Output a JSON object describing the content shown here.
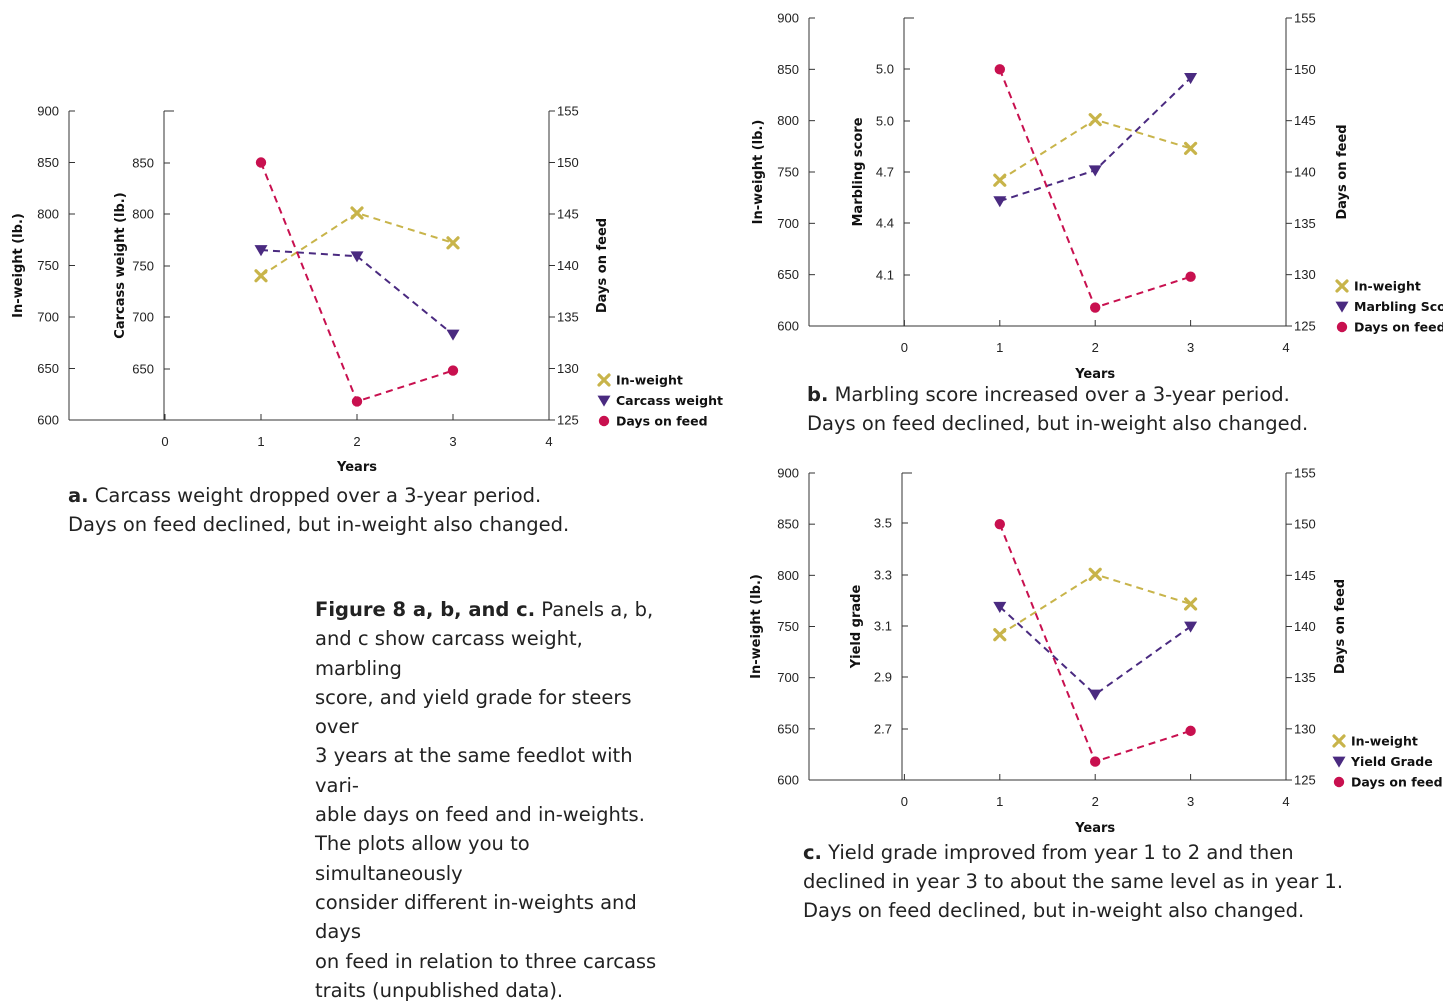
{
  "colors": {
    "inweight": "#c8b44a",
    "trait": "#4a2a80",
    "days": "#c8104f"
  },
  "figure_caption": {
    "heading": "Figure 8 a, b, and c.",
    "lines": [
      " Panels a, b,",
      "and c show carcass weight, marbling",
      "score, and yield grade for steers over",
      "3 years at the same feedlot with vari-",
      "able days on feed and in-weights.",
      "The plots allow you to simultaneously",
      "consider different in-weights and days",
      "on feed in relation to three carcass",
      "traits (unpublished data)."
    ]
  },
  "chart_data": [
    {
      "type": "line",
      "panel": "a",
      "caption_label": "a.",
      "caption_lines": [
        " Carcass weight dropped over a 3-year period.",
        "Days on feed declined, but in-weight also changed."
      ],
      "xlabel": "Years",
      "x_ticks": [
        "0",
        "1",
        "2",
        "3",
        "4"
      ],
      "x": [
        1,
        2,
        3
      ],
      "xlim": [
        -1,
        4
      ],
      "y_left": {
        "label": "In-weight (lb.)",
        "ticks": [
          "600",
          "650",
          "700",
          "750",
          "800",
          "850",
          "900"
        ],
        "lim": [
          600,
          900
        ]
      },
      "y_trait": {
        "label": "Carcass weight (lb.)",
        "ticks": [
          "650",
          "700",
          "750",
          "800",
          "850"
        ],
        "lim": [
          600,
          900
        ]
      },
      "y_right": {
        "label": "Days on feed",
        "ticks": [
          "125",
          "130",
          "135",
          "140",
          "145",
          "150",
          "155"
        ],
        "lim": [
          125,
          155
        ]
      },
      "series": [
        {
          "name": "In-weight",
          "axis": "left",
          "marker": "x",
          "values": [
            740,
            801,
            772
          ]
        },
        {
          "name": "Carcass weight",
          "axis": "trait",
          "marker": "triangle",
          "values": [
            765,
            759,
            683
          ]
        },
        {
          "name": "Days on feed",
          "axis": "right",
          "marker": "circle",
          "values": [
            150,
            126.8,
            129.8
          ]
        }
      ],
      "legend": "right"
    },
    {
      "type": "line",
      "panel": "b",
      "caption_label": "b.",
      "caption_lines": [
        " Marbling score increased over a 3-year period.",
        "Days on feed declined, but in-weight also changed."
      ],
      "xlabel": "Years",
      "x_ticks": [
        "0",
        "1",
        "2",
        "3",
        "4"
      ],
      "x": [
        1,
        2,
        3
      ],
      "xlim": [
        -1,
        4
      ],
      "y_left": {
        "label": "In-weight (lb.)",
        "ticks": [
          "600",
          "650",
          "700",
          "750",
          "800",
          "850",
          "900"
        ],
        "lim": [
          600,
          900
        ]
      },
      "y_trait": {
        "label": "Marbling score",
        "ticks": [
          "4.1",
          "4.4",
          "4.7",
          "5.0",
          "5.0"
        ],
        "lim": [
          3.8,
          5.6
        ]
      },
      "y_right": {
        "label": "Days on feed",
        "ticks": [
          "125",
          "130",
          "135",
          "140",
          "145",
          "150",
          "155"
        ],
        "lim": [
          125,
          155
        ]
      },
      "series": [
        {
          "name": "In-weight",
          "axis": "left",
          "marker": "x",
          "values": [
            742,
            801,
            773
          ]
        },
        {
          "name": "Marbling Score",
          "axis": "trait",
          "marker": "triangle",
          "values": [
            4.53,
            4.71,
            5.25
          ]
        },
        {
          "name": "Days on feed",
          "axis": "right",
          "marker": "circle",
          "values": [
            150,
            126.8,
            129.8
          ]
        }
      ],
      "legend": "right"
    },
    {
      "type": "line",
      "panel": "c",
      "caption_label": "c.",
      "caption_lines": [
        " Yield grade improved from year 1 to 2 and then",
        "declined in year 3 to about the same level as in year 1.",
        "Days on feed declined, but in-weight also changed."
      ],
      "xlabel": "Years",
      "x_ticks": [
        "0",
        "1",
        "2",
        "3",
        "4"
      ],
      "x": [
        1,
        2,
        3
      ],
      "xlim": [
        -1,
        4
      ],
      "y_left": {
        "label": "In-weight (lb.)",
        "ticks": [
          "600",
          "650",
          "700",
          "750",
          "800",
          "850",
          "900"
        ],
        "lim": [
          600,
          900
        ]
      },
      "y_trait": {
        "label": "Yield grade",
        "ticks": [
          "2.7",
          "2.9",
          "3.1",
          "3.3",
          "3.5"
        ],
        "lim": [
          2.3,
          3.7
        ]
      },
      "y_right": {
        "label": "Days on feed",
        "ticks": [
          "125",
          "130",
          "135",
          "140",
          "145",
          "150",
          "155"
        ],
        "lim": [
          125,
          155
        ]
      },
      "series": [
        {
          "name": "In-weight",
          "axis": "left",
          "marker": "x",
          "values": [
            742,
            801,
            772
          ]
        },
        {
          "name": "Yield Grade",
          "axis": "trait",
          "marker": "triangle",
          "values": [
            3.09,
            2.69,
            3.0
          ]
        },
        {
          "name": "Days on feed",
          "axis": "right",
          "marker": "circle",
          "values": [
            150,
            126.8,
            129.8
          ]
        }
      ],
      "legend": "right"
    }
  ]
}
